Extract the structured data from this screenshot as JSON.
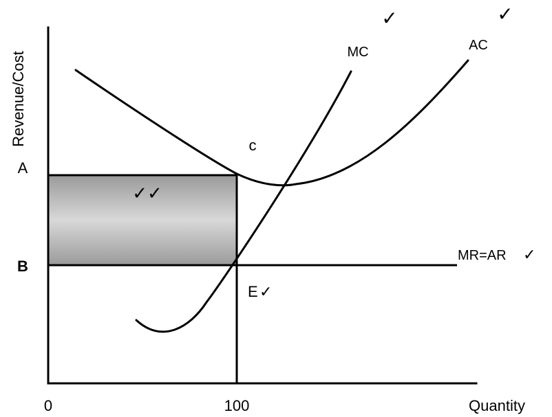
{
  "axes": {
    "y_label": "Revenue/Cost",
    "x_label": "Quantity",
    "x_origin": "0",
    "x_tick": "100"
  },
  "price_labels": {
    "a": "A",
    "b": "B"
  },
  "curves": {
    "mc": "MC",
    "ac": "AC",
    "mr_ar": "MR=AR"
  },
  "points": {
    "c": "C",
    "e": "E"
  },
  "marks": {
    "tick": "✓",
    "double_tick": "✓✓"
  },
  "colors": {
    "profit_area_light": "#d4d4d4",
    "profit_area_dark": "#9a9a9a"
  }
}
